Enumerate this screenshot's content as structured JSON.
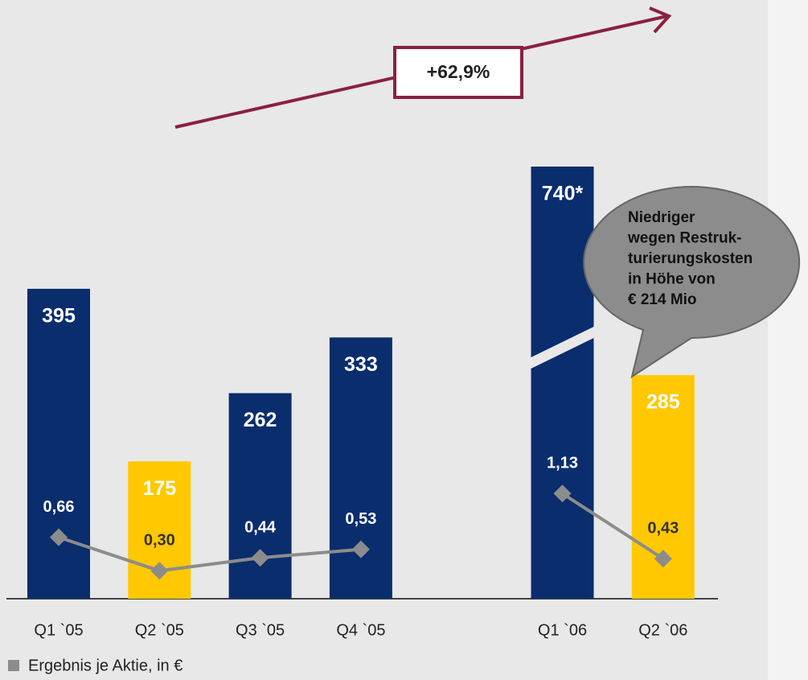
{
  "chart_data": {
    "type": "bar",
    "categories": [
      "Q1  `05",
      "Q2 `05",
      "Q3 `05",
      "Q4 `05",
      null,
      "Q1 `06",
      "Q2 `06"
    ],
    "series": [
      {
        "type": "bar",
        "values": [
          395,
          175,
          262,
          333,
          null,
          740,
          285
        ],
        "value_labels": [
          "395",
          "175",
          "262",
          "333",
          null,
          "740*",
          "285"
        ],
        "colors": [
          "#0a2d6e",
          "#ffc800",
          "#0a2d6e",
          "#0a2d6e",
          null,
          "#0a2d6e",
          "#ffc800"
        ]
      },
      {
        "type": "line",
        "name": "Ergebnis je Aktie, in €",
        "color": "#8c8c8c",
        "values": [
          0.66,
          0.3,
          0.44,
          0.53,
          null,
          1.13,
          0.43
        ],
        "value_labels": [
          "0,66",
          "0,30",
          "0,44",
          "0,53",
          null,
          "1,13",
          "0,43"
        ]
      }
    ],
    "annotations": [
      {
        "text": "+62,9%",
        "color": "#8b2040"
      },
      {
        "lines": [
          "Niedriger",
          "wegen Restruk-",
          "turierungskosten",
          "in Höhe von",
          "€ 214 Mio"
        ],
        "color": "#8c8c8c"
      }
    ]
  }
}
